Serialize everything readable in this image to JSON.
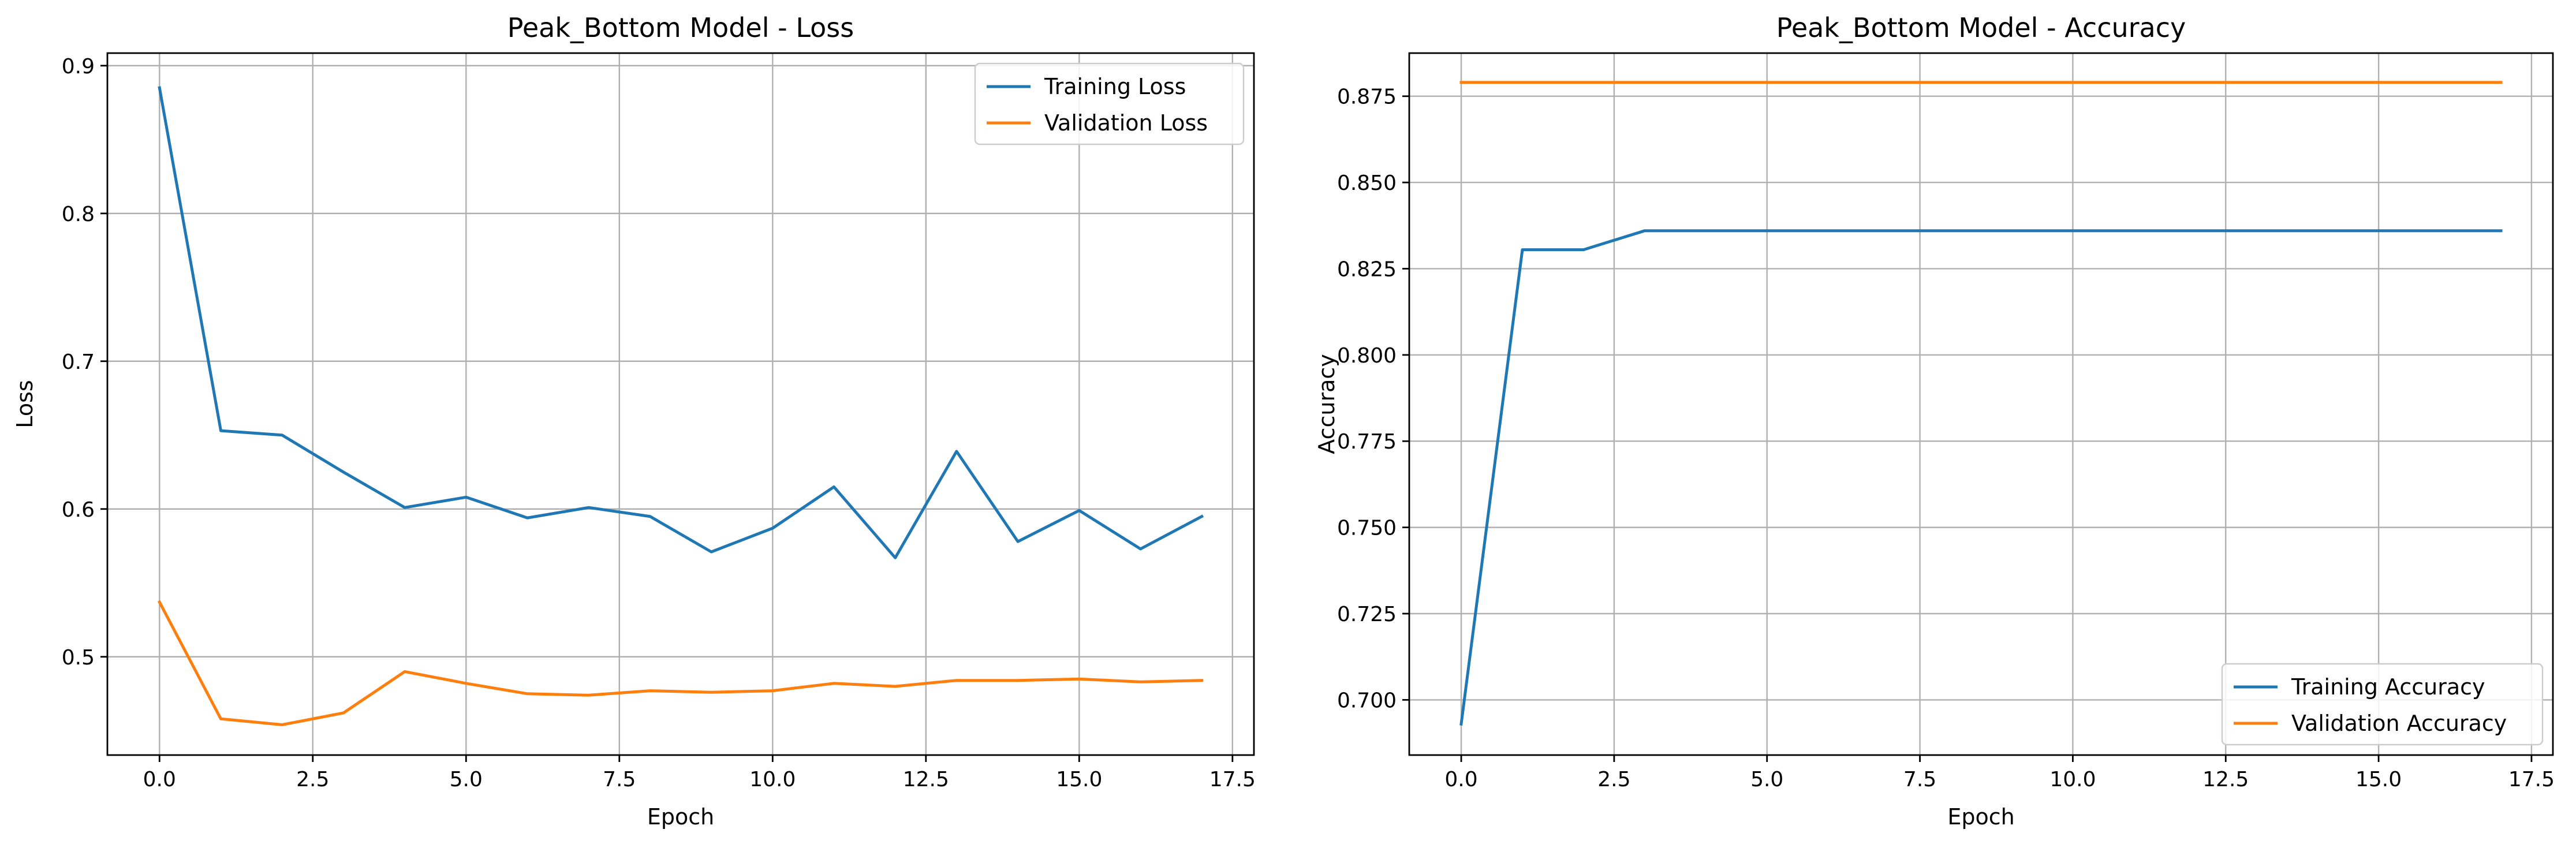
{
  "chart_data": [
    {
      "type": "line",
      "title": "Peak_Bottom Model - Loss",
      "xlabel": "Epoch",
      "ylabel": "Loss",
      "xlim": [
        -0.85,
        17.85
      ],
      "ylim": [
        0.4335,
        0.9085
      ],
      "xticks": [
        0.0,
        2.5,
        5.0,
        7.5,
        10.0,
        12.5,
        15.0,
        17.5
      ],
      "xtick_labels": [
        "0.0",
        "2.5",
        "5.0",
        "7.5",
        "10.0",
        "12.5",
        "15.0",
        "17.5"
      ],
      "yticks": [
        0.5,
        0.6,
        0.7,
        0.8,
        0.9
      ],
      "ytick_labels": [
        "0.5",
        "0.6",
        "0.7",
        "0.8",
        "0.9"
      ],
      "grid": true,
      "legend_position": "top-right",
      "x": [
        0,
        1,
        2,
        3,
        4,
        5,
        6,
        7,
        8,
        9,
        10,
        11,
        12,
        13,
        14,
        15,
        16,
        17
      ],
      "series": [
        {
          "name": "Training Loss",
          "color": "#1f77b4",
          "values": [
            0.885,
            0.653,
            0.65,
            0.625,
            0.601,
            0.608,
            0.594,
            0.601,
            0.595,
            0.571,
            0.587,
            0.615,
            0.567,
            0.639,
            0.578,
            0.599,
            0.573,
            0.595
          ]
        },
        {
          "name": "Validation Loss",
          "color": "#ff7f0e",
          "values": [
            0.537,
            0.458,
            0.454,
            0.462,
            0.49,
            0.482,
            0.475,
            0.474,
            0.477,
            0.476,
            0.477,
            0.482,
            0.48,
            0.484,
            0.484,
            0.485,
            0.483,
            0.484
          ]
        }
      ]
    },
    {
      "type": "line",
      "title": "Peak_Bottom Model - Accuracy",
      "xlabel": "Epoch",
      "ylabel": "Accuracy",
      "xlim": [
        -0.85,
        17.85
      ],
      "ylim": [
        0.684,
        0.8875
      ],
      "xticks": [
        0.0,
        2.5,
        5.0,
        7.5,
        10.0,
        12.5,
        15.0,
        17.5
      ],
      "xtick_labels": [
        "0.0",
        "2.5",
        "5.0",
        "7.5",
        "10.0",
        "12.5",
        "15.0",
        "17.5"
      ],
      "yticks": [
        0.7,
        0.725,
        0.75,
        0.775,
        0.8,
        0.825,
        0.85,
        0.875
      ],
      "ytick_labels": [
        "0.700",
        "0.725",
        "0.750",
        "0.775",
        "0.800",
        "0.825",
        "0.850",
        "0.875"
      ],
      "grid": true,
      "legend_position": "bottom-right",
      "x": [
        0,
        1,
        2,
        3,
        4,
        5,
        6,
        7,
        8,
        9,
        10,
        11,
        12,
        13,
        14,
        15,
        16,
        17
      ],
      "series": [
        {
          "name": "Training Accuracy",
          "color": "#1f77b4",
          "values": [
            0.693,
            0.8305,
            0.8305,
            0.836,
            0.836,
            0.836,
            0.836,
            0.836,
            0.836,
            0.836,
            0.836,
            0.836,
            0.836,
            0.836,
            0.836,
            0.836,
            0.836,
            0.836
          ]
        },
        {
          "name": "Validation Accuracy",
          "color": "#ff7f0e",
          "values": [
            0.879,
            0.879,
            0.879,
            0.879,
            0.879,
            0.879,
            0.879,
            0.879,
            0.879,
            0.879,
            0.879,
            0.879,
            0.879,
            0.879,
            0.879,
            0.879,
            0.879,
            0.879
          ]
        }
      ]
    }
  ]
}
